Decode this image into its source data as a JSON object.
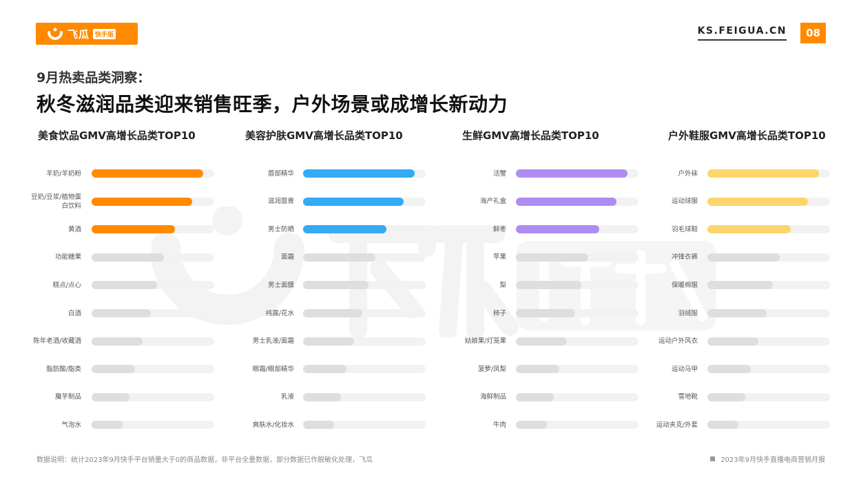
{
  "header": {
    "logo_text": "飞瓜",
    "logo_badge": "快手版",
    "site": "KS.FEIGUA.CN",
    "page_number": "08"
  },
  "heading": {
    "subtitle": "9月热卖品类洞察：",
    "title": "秋冬滋润品类迎来销售旺季，户外场景或成增长新动力"
  },
  "colors": {
    "brand": "#ff8a00",
    "panel1": "#ff8a00",
    "panel2": "#35aaf5",
    "panel3": "#ae8cf2",
    "panel4": "#fcd66a",
    "gray_bar": "#dedede",
    "track": "#f2f2f2"
  },
  "chart_data": [
    {
      "type": "bar",
      "title": "美食饮品GMV高增长品类TOP10",
      "categories": [
        "羊奶/羊奶粉",
        "豆奶/豆浆/植物蛋白饮料",
        "黄酒",
        "功能糖果",
        "糕点/点心",
        "白酒",
        "陈年老酒/收藏酒",
        "脂肪酸/脂类",
        "魔芋制品",
        "气泡水"
      ],
      "values": [
        10,
        9,
        7.5,
        6.5,
        5.9,
        5.3,
        4.6,
        3.9,
        3.4,
        2.8
      ],
      "xlim": [
        0,
        11
      ],
      "highlight_count": 3,
      "xlabel": "",
      "ylabel": ""
    },
    {
      "type": "bar",
      "title": "美容护肤GMV高增长品类TOP10",
      "categories": [
        "唇部精华",
        "滋润唇膏",
        "男士防晒",
        "面霜",
        "男士面膜",
        "纯露/花水",
        "男士乳液/面霜",
        "眼霜/眼部精华",
        "乳液",
        "爽肤水/化妆水"
      ],
      "values": [
        10,
        9,
        7.5,
        6.5,
        5.9,
        5.3,
        4.6,
        3.9,
        3.4,
        2.8
      ],
      "xlim": [
        0,
        11
      ],
      "highlight_count": 3,
      "xlabel": "",
      "ylabel": ""
    },
    {
      "type": "bar",
      "title": "生鲜GMV高增长品类TOP10",
      "categories": [
        "活蟹",
        "海产礼盒",
        "鲜枣",
        "苹果",
        "梨",
        "柿子",
        "姑娘果/灯笼果",
        "菠萝/凤梨",
        "海鲜制品",
        "牛肉"
      ],
      "values": [
        10,
        9,
        7.5,
        6.5,
        5.9,
        5.3,
        4.6,
        3.9,
        3.4,
        2.8
      ],
      "xlim": [
        0,
        11
      ],
      "highlight_count": 3,
      "xlabel": "",
      "ylabel": ""
    },
    {
      "type": "bar",
      "title": "户外鞋服GMV高增长品类TOP10",
      "categories": [
        "户外袜",
        "运动球服",
        "羽毛球鞋",
        "冲锋衣裤",
        "保暖棉服",
        "羽绒服",
        "运动户外风衣",
        "运动马甲",
        "雪地靴",
        "运动夹克/外套"
      ],
      "values": [
        10,
        9,
        7.5,
        6.5,
        5.9,
        5.3,
        4.6,
        3.9,
        3.4,
        2.8
      ],
      "xlim": [
        0,
        11
      ],
      "highlight_count": 3,
      "xlabel": "",
      "ylabel": ""
    }
  ],
  "footer": {
    "note": "数据说明：统计2023年9月快手平台销量大于0的商品数据，非平台全量数据，部分数据已作脱敏化处理，飞瓜",
    "report": "2023年9月快手直播电商营销月报"
  }
}
